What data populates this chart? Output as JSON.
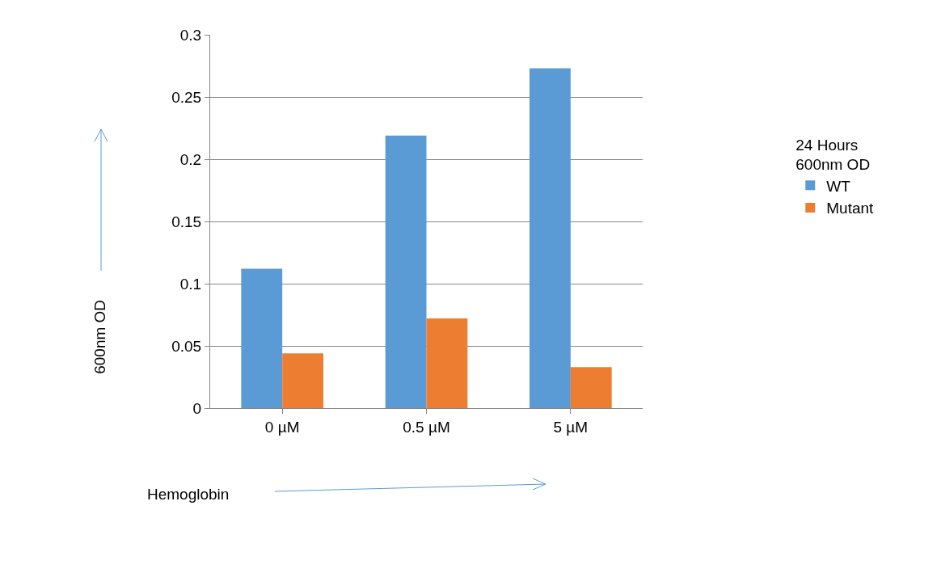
{
  "chart_data": {
    "type": "bar",
    "xlabel": "Hemoglobin",
    "ylabel": "600nm OD",
    "legend_title": "24 Hours\n600nm OD",
    "categories": [
      "0 µM",
      "0.5 µM",
      "5 µM"
    ],
    "series": [
      {
        "name": "WT",
        "color": "#5b9bd5",
        "values": [
          0.112,
          0.219,
          0.273
        ]
      },
      {
        "name": "Mutant",
        "color": "#ed7d31",
        "values": [
          0.044,
          0.072,
          0.033
        ]
      }
    ],
    "ylim": [
      0,
      0.3
    ],
    "yticks": [
      0,
      0.05,
      0.1,
      0.15,
      0.2,
      0.25,
      0.3
    ],
    "grid": "y",
    "legend": "right"
  }
}
